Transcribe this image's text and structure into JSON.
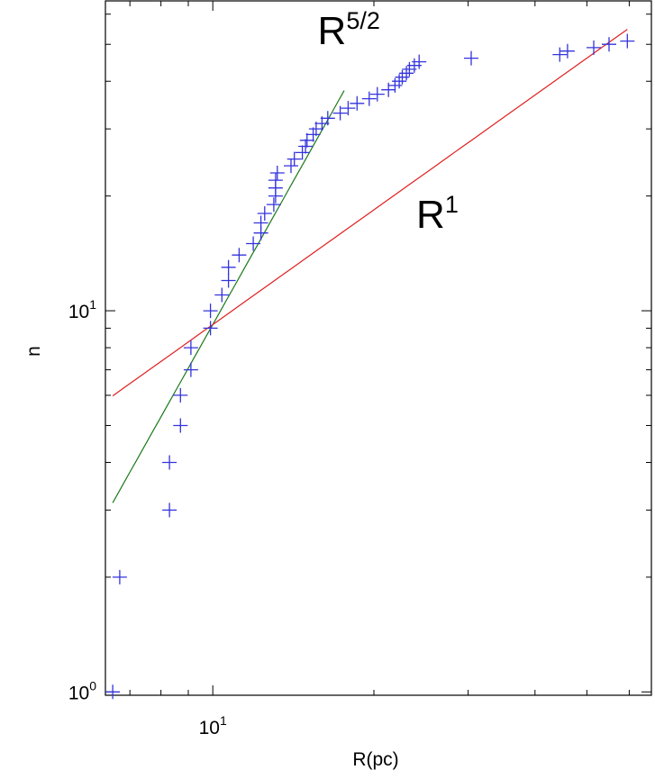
{
  "chart_data": {
    "type": "scatter",
    "xscale": "log",
    "yscale": "log",
    "xlim": [
      6.3,
      66
    ],
    "ylim": [
      0.98,
      65
    ],
    "xlabel": "R(pc)",
    "ylabel": "n",
    "xticks": [
      {
        "base": "10",
        "exp": "1",
        "value": 10
      }
    ],
    "yticks": [
      {
        "base": "10",
        "exp": "0",
        "value": 1
      },
      {
        "base": "10",
        "exp": "1",
        "value": 10
      }
    ],
    "grid": false,
    "marker_color": "#3333dd",
    "points": [
      [
        6.5,
        1
      ],
      [
        6.7,
        2
      ],
      [
        8.3,
        3
      ],
      [
        8.3,
        4
      ],
      [
        8.7,
        5
      ],
      [
        8.7,
        6
      ],
      [
        9.1,
        7
      ],
      [
        9.1,
        8
      ],
      [
        9.9,
        9
      ],
      [
        9.9,
        10
      ],
      [
        10.4,
        11
      ],
      [
        10.7,
        12
      ],
      [
        10.7,
        13
      ],
      [
        11.2,
        14
      ],
      [
        11.9,
        15
      ],
      [
        12.3,
        16
      ],
      [
        12.3,
        17
      ],
      [
        12.5,
        18
      ],
      [
        13.0,
        19
      ],
      [
        13.1,
        20
      ],
      [
        13.1,
        21
      ],
      [
        13.1,
        22
      ],
      [
        13.2,
        23
      ],
      [
        14.0,
        24
      ],
      [
        14.2,
        25
      ],
      [
        14.7,
        26
      ],
      [
        14.9,
        27
      ],
      [
        15.0,
        28
      ],
      [
        15.4,
        29
      ],
      [
        15.6,
        30
      ],
      [
        16.0,
        31
      ],
      [
        16.4,
        32
      ],
      [
        17.3,
        33
      ],
      [
        17.9,
        34
      ],
      [
        18.6,
        35
      ],
      [
        19.6,
        36
      ],
      [
        20.3,
        37
      ],
      [
        21.3,
        38
      ],
      [
        21.9,
        39
      ],
      [
        22.3,
        40
      ],
      [
        22.6,
        41
      ],
      [
        23.0,
        42
      ],
      [
        23.3,
        43
      ],
      [
        23.8,
        44
      ],
      [
        24.3,
        45
      ],
      [
        30.4,
        46
      ],
      [
        44.5,
        47
      ],
      [
        46.0,
        48
      ],
      [
        51.5,
        49
      ],
      [
        55.0,
        50
      ],
      [
        59.5,
        51
      ]
    ],
    "series": [
      {
        "label_base": "R",
        "label_exp": "5/2",
        "slope": 2.5,
        "anchor": [
          10,
          9.2
        ],
        "x_range": [
          6.5,
          17.6
        ],
        "color": "#1a7a1a",
        "label_at": [
          15.7,
          50
        ]
      },
      {
        "label_base": "R",
        "label_exp": "1",
        "slope": 1.0,
        "anchor": [
          10,
          9.2
        ],
        "x_range": [
          6.5,
          59.5
        ],
        "color": "#e02020",
        "label_at": [
          24.0,
          16.5
        ]
      }
    ]
  }
}
